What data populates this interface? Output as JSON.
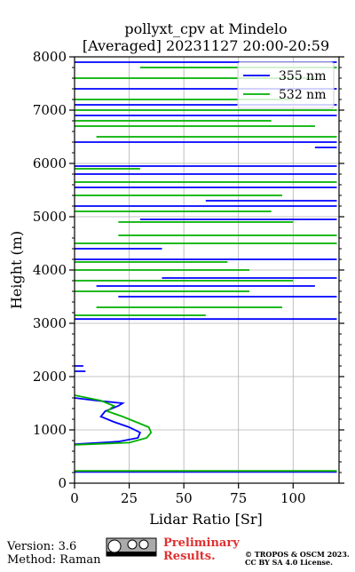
{
  "chart_data": {
    "type": "line",
    "title": "pollyxt_cpv at Mindelo",
    "subtitle": "[Averaged] 20231127 20:00-20:59",
    "xlabel": "Lidar Ratio [Sr]",
    "ylabel": "Height (m)",
    "xlim": [
      0,
      121
    ],
    "ylim": [
      0,
      8000
    ],
    "xticks": [
      0,
      25,
      50,
      75,
      100
    ],
    "yticks": [
      0,
      1000,
      2000,
      3000,
      4000,
      5000,
      6000,
      7000,
      8000
    ],
    "yminorticks": [
      200,
      400,
      600,
      800,
      1200,
      1400,
      1600,
      1800,
      2200,
      2400,
      2600,
      2800,
      3200,
      3400,
      3600,
      3800,
      4200,
      4400,
      4600,
      4800,
      5200,
      5400,
      5600,
      5800,
      6200,
      6400,
      6600,
      6800,
      7200,
      7400,
      7600,
      7800
    ],
    "grid": true,
    "legend": "upper right",
    "series": [
      {
        "name": "355 nm",
        "color": "#0000ff",
        "x": [
          0,
          20,
          29,
          30,
          25,
          18,
          12,
          14,
          20,
          22,
          10,
          0,
          null,
          0,
          120,
          null,
          0,
          5,
          null,
          0,
          4,
          null,
          0,
          120,
          null,
          20,
          120,
          null,
          10,
          110,
          null,
          40,
          120,
          null,
          0,
          120,
          null,
          0,
          40,
          null,
          30,
          120,
          null,
          0,
          120,
          null,
          60,
          120,
          null,
          0,
          120,
          null,
          0,
          120,
          null,
          0,
          120,
          null,
          110,
          120,
          null,
          0,
          120,
          null,
          0,
          120,
          null,
          0,
          120,
          null,
          0,
          120,
          null,
          0,
          120
        ],
        "values": [
          730,
          780,
          850,
          950,
          1050,
          1150,
          1250,
          1350,
          1450,
          1500,
          1550,
          1600,
          null,
          210,
          210,
          null,
          2100,
          2100,
          null,
          2200,
          2200,
          null,
          3080,
          3080,
          null,
          3500,
          3500,
          null,
          3700,
          3700,
          null,
          3850,
          3850,
          null,
          4200,
          4200,
          null,
          4400,
          4400,
          null,
          4950,
          4950,
          null,
          5200,
          5200,
          null,
          5300,
          5300,
          null,
          5550,
          5550,
          null,
          5800,
          5800,
          null,
          5950,
          5950,
          null,
          6300,
          6300,
          null,
          6400,
          6400,
          null,
          6900,
          6900,
          null,
          7100,
          7100,
          null,
          7400,
          7400,
          null,
          7900,
          7900
        ]
      },
      {
        "name": "532 nm",
        "color": "#00b000",
        "x": [
          0,
          25,
          33,
          35,
          34,
          28,
          22,
          15,
          18,
          12,
          0,
          null,
          0,
          120,
          null,
          0,
          60,
          null,
          10,
          95,
          null,
          0,
          80,
          null,
          0,
          100,
          null,
          0,
          80,
          null,
          0,
          70,
          null,
          0,
          120,
          null,
          20,
          120,
          null,
          20,
          100,
          null,
          0,
          90,
          null,
          0,
          95,
          null,
          0,
          120,
          null,
          0,
          30,
          null,
          10,
          120,
          null,
          0,
          110,
          null,
          0,
          90,
          null,
          0,
          120,
          null,
          0,
          100,
          null,
          0,
          110,
          null,
          30,
          120
        ],
        "values": [
          720,
          760,
          850,
          950,
          1050,
          1150,
          1250,
          1350,
          1450,
          1550,
          1650,
          null,
          230,
          230,
          null,
          3150,
          3150,
          null,
          3300,
          3300,
          null,
          3600,
          3600,
          null,
          3800,
          3800,
          null,
          4000,
          4000,
          null,
          4150,
          4150,
          null,
          4500,
          4500,
          null,
          4650,
          4650,
          null,
          4900,
          4900,
          null,
          5100,
          5100,
          null,
          5400,
          5400,
          null,
          5650,
          5650,
          null,
          5900,
          5900,
          null,
          6500,
          6500,
          null,
          6700,
          6700,
          null,
          6800,
          6800,
          null,
          7000,
          7000,
          null,
          7200,
          7200,
          null,
          7600,
          7600,
          null,
          7800,
          7800
        ]
      }
    ]
  },
  "footer": {
    "version": "Version: 3.6",
    "method": "Method: Raman",
    "preliminary": [
      "Preliminary",
      "Results."
    ],
    "license": [
      "© TROPOS & OSCM 2023.",
      "CC BY SA 4.0 License."
    ]
  }
}
